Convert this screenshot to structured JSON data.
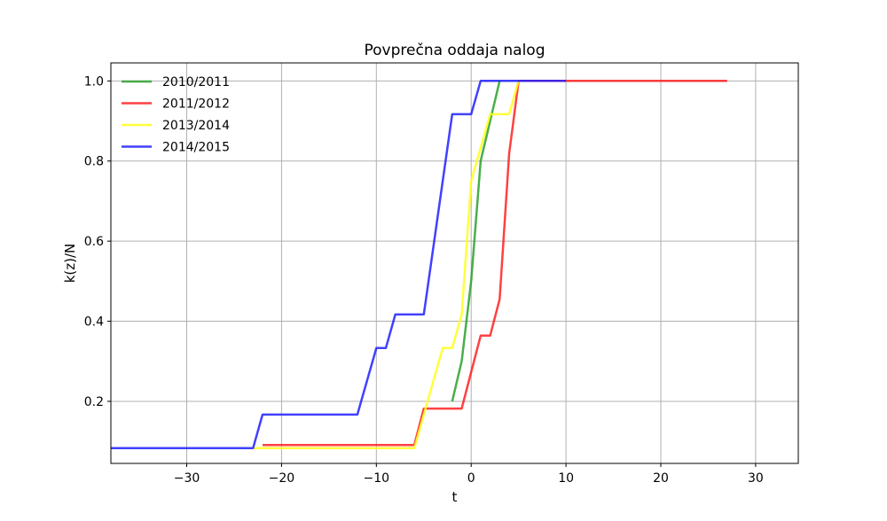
{
  "chart_data": {
    "type": "line",
    "title": "Povprečna oddaja nalog",
    "xlabel": "t",
    "ylabel": "k(z)/N",
    "xlim": [
      -38,
      34.5
    ],
    "ylim": [
      0.045,
      1.045
    ],
    "xticks": [
      -30,
      -20,
      -10,
      0,
      10,
      20,
      30
    ],
    "xtick_labels": [
      "−30",
      "−20",
      "−10",
      "0",
      "10",
      "20",
      "30"
    ],
    "yticks": [
      0.2,
      0.4,
      0.6,
      0.8,
      1.0
    ],
    "ytick_labels": [
      "0.2",
      "0.4",
      "0.6",
      "0.8",
      "1.0"
    ],
    "grid": true,
    "legend_position": "top-left",
    "series": [
      {
        "name": "2010/2011",
        "color": "#2ca02c",
        "points": [
          [
            -2,
            0.2
          ],
          [
            -1,
            0.3
          ],
          [
            0,
            0.5
          ],
          [
            1,
            0.8
          ],
          [
            3,
            1.0
          ]
        ]
      },
      {
        "name": "2011/2012",
        "color": "#ff2020",
        "points": [
          [
            -22,
            0.091
          ],
          [
            -6,
            0.091
          ],
          [
            -5,
            0.182
          ],
          [
            -1,
            0.182
          ],
          [
            1,
            0.364
          ],
          [
            2,
            0.364
          ],
          [
            3,
            0.455
          ],
          [
            4,
            0.818
          ],
          [
            5,
            1.0
          ],
          [
            27,
            1.0
          ]
        ]
      },
      {
        "name": "2013/2014",
        "color": "#ffff1a",
        "points": [
          [
            -23,
            0.083
          ],
          [
            -6,
            0.083
          ],
          [
            -3,
            0.333
          ],
          [
            -2,
            0.333
          ],
          [
            -1,
            0.417
          ],
          [
            0,
            0.75
          ],
          [
            1,
            0.833
          ],
          [
            2,
            0.917
          ],
          [
            4,
            0.917
          ],
          [
            5,
            1.0
          ]
        ]
      },
      {
        "name": "2014/2015",
        "color": "#2020ff",
        "points": [
          [
            -38,
            0.083
          ],
          [
            -23,
            0.083
          ],
          [
            -22,
            0.167
          ],
          [
            -12,
            0.167
          ],
          [
            -10,
            0.333
          ],
          [
            -9,
            0.333
          ],
          [
            -8,
            0.417
          ],
          [
            -5,
            0.417
          ],
          [
            -2,
            0.917
          ],
          [
            0,
            0.917
          ],
          [
            1,
            1.0
          ],
          [
            10,
            1.0
          ]
        ]
      }
    ]
  }
}
